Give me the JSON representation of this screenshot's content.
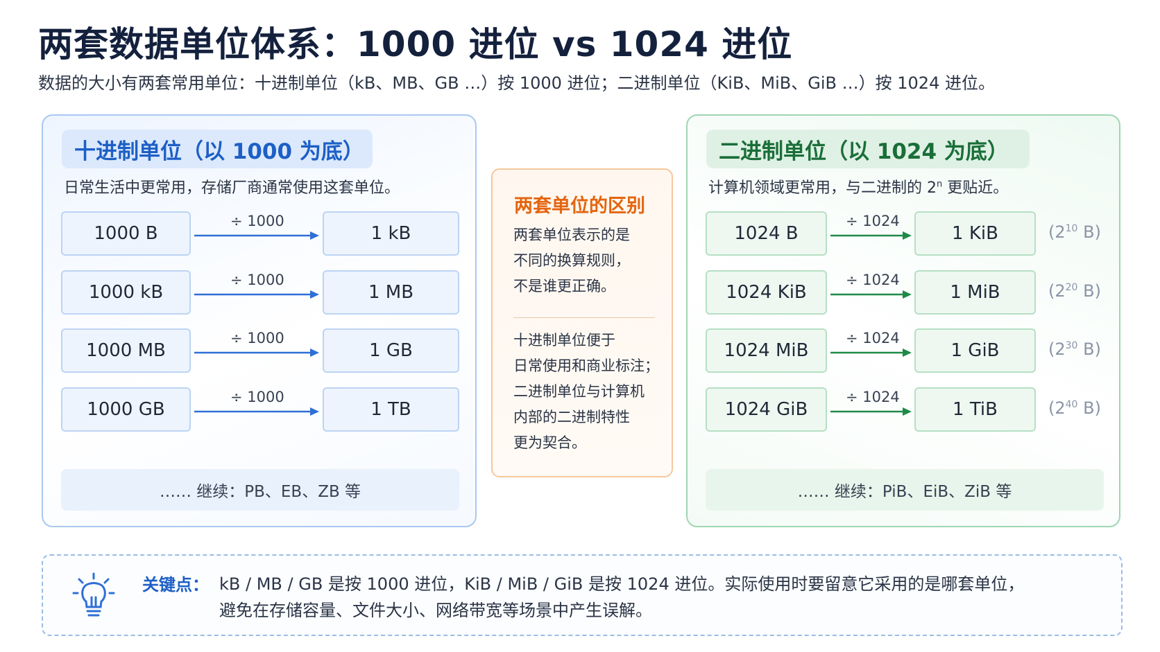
{
  "title": "两套数据单位体系：1000 进位 vs 1024 进位",
  "subtitle": "数据的大小有两套常用单位：十进制单位（kB、MB、GB …）按 1000 进位；二进制单位（KiB、MiB、GiB …）按 1024 进位。",
  "decimal": {
    "header": "十进制单位（以 1000 为底）",
    "desc": "日常生活中更常用，存储厂商通常使用这套单位。",
    "accent": "#2f6fd6",
    "rows": [
      {
        "from": "1000 B",
        "op": "÷ 1000",
        "to": "1 kB"
      },
      {
        "from": "1000 kB",
        "op": "÷ 1000",
        "to": "1 MB"
      },
      {
        "from": "1000 MB",
        "op": "÷ 1000",
        "to": "1 GB"
      },
      {
        "from": "1000 GB",
        "op": "÷ 1000",
        "to": "1 TB"
      }
    ],
    "more": "…… 继续：PB、EB、ZB 等"
  },
  "binary": {
    "header": "二进制单位（以 1024 为底）",
    "desc_before": "计算机领域更常用，与二进制的 2",
    "desc_sup": "n",
    "desc_after": " 更贴近。",
    "accent": "#1f8a47",
    "rows": [
      {
        "from": "1024 B",
        "op": "÷ 1024",
        "to": "1 KiB",
        "power_base": "(2",
        "power_exp": "10",
        "power_unit": " B)"
      },
      {
        "from": "1024 KiB",
        "op": "÷ 1024",
        "to": "1 MiB",
        "power_base": "(2",
        "power_exp": "20",
        "power_unit": " B)"
      },
      {
        "from": "1024 MiB",
        "op": "÷ 1024",
        "to": "1 GiB",
        "power_base": "(2",
        "power_exp": "30",
        "power_unit": " B)"
      },
      {
        "from": "1024 GiB",
        "op": "÷ 1024",
        "to": "1 TiB",
        "power_base": "(2",
        "power_exp": "40",
        "power_unit": " B)"
      }
    ],
    "more": "…… 继续：PiB、EiB、ZiB 等"
  },
  "difference": {
    "title": "两套单位的区别",
    "para1": [
      "两套单位表示的是",
      "不同的换算规则，",
      "不是谁更正确。"
    ],
    "para2": [
      "十进制单位便于",
      "日常使用和商业标注；",
      "二进制单位与计算机",
      "内部的二进制特性",
      "更为契合。"
    ]
  },
  "key_point": {
    "icon": "lightbulb-icon",
    "label": "关键点：",
    "lines": [
      "kB / MB / GB 是按 1000 进位，KiB / MiB / GiB 是按 1024 进位。实际使用时要留意它采用的是哪套单位，",
      "避免在存储容量、文件大小、网络带宽等场景中产生误解。"
    ]
  }
}
